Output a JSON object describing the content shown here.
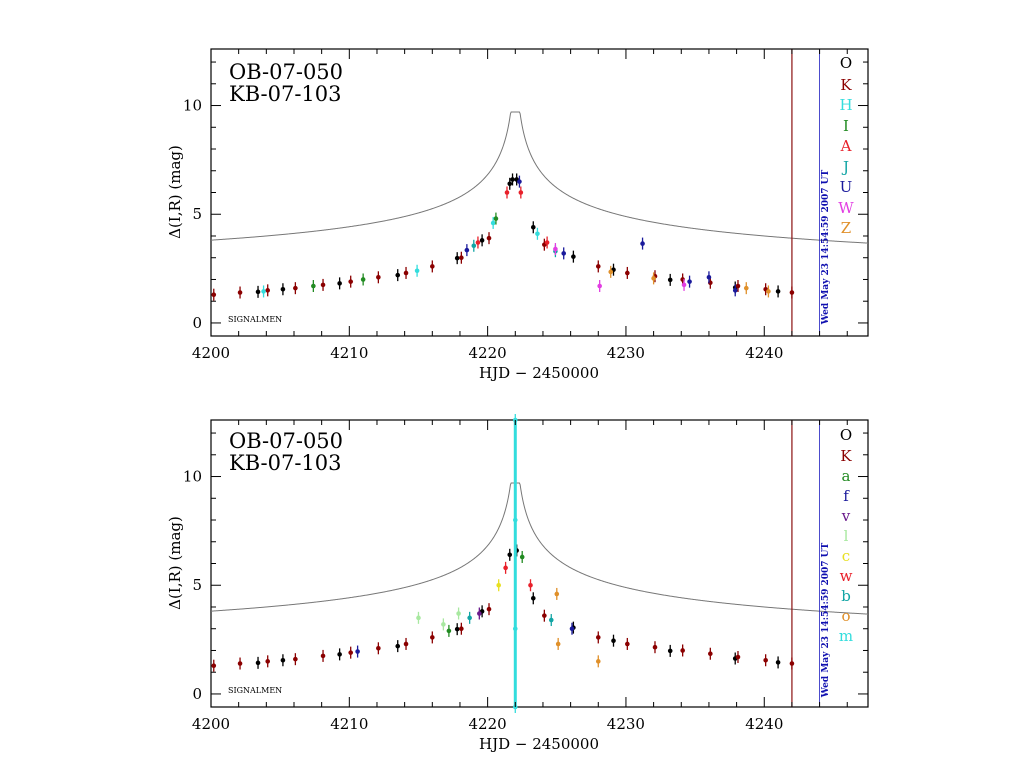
{
  "chart_data": [
    {
      "type": "scatter",
      "panel": "top",
      "event_labels": [
        "OB-07-050",
        "KB-07-103"
      ],
      "xlabel": "HJD − 2450000",
      "ylabel": "Δ(I,R) (mag)",
      "xlim": [
        4200,
        4247.5
      ],
      "ylim": [
        -0.6,
        12.6
      ],
      "xticks": [
        4200,
        4210,
        4220,
        4230,
        4240
      ],
      "xtick_labels": [
        "4200",
        "4210",
        "4220",
        "4230",
        "4240"
      ],
      "yticks": [
        0,
        5,
        10
      ],
      "ytick_labels": [
        "0",
        "5",
        "10"
      ],
      "footer_text": "SIGNALMEN",
      "timestamp": "Wed May 23 14:54:59 2007 UT",
      "current_time_marker": 4242,
      "timestamp_marker": 4244,
      "model": {
        "name": "model light curve",
        "color": "#777777",
        "t0": 4222.0,
        "peak": 9.7
      },
      "legend": [
        {
          "label": "O",
          "color": "#000000"
        },
        {
          "label": "K",
          "color": "#8b0000"
        },
        {
          "label": "H",
          "color": "#33dddd"
        },
        {
          "label": "I",
          "color": "#228b22"
        },
        {
          "label": "A",
          "color": "#e8202a"
        },
        {
          "label": "J",
          "color": "#12a5a5"
        },
        {
          "label": "U",
          "color": "#1a1a9c"
        },
        {
          "label": "W",
          "color": "#e23ee2"
        },
        {
          "label": "Z",
          "color": "#e0902a"
        }
      ],
      "series": [
        {
          "name": "O",
          "color": "#000000",
          "points": [
            [
              4203.4,
              1.43
            ],
            [
              4205.2,
              1.55
            ],
            [
              4209.3,
              1.82
            ],
            [
              4213.5,
              2.2
            ],
            [
              4217.8,
              2.98
            ],
            [
              4219.6,
              3.8
            ],
            [
              4221.6,
              6.4
            ],
            [
              4221.8,
              6.6
            ],
            [
              4222.1,
              6.6
            ],
            [
              4223.3,
              4.4
            ],
            [
              4226.2,
              3.05
            ],
            [
              4229.1,
              2.45
            ],
            [
              4233.2,
              1.98
            ],
            [
              4237.9,
              1.63
            ],
            [
              4241.0,
              1.45
            ]
          ]
        },
        {
          "name": "K",
          "color": "#8b0000",
          "points": [
            [
              4200.2,
              1.3
            ],
            [
              4202.1,
              1.4
            ],
            [
              4204.1,
              1.5
            ],
            [
              4206.1,
              1.6
            ],
            [
              4208.1,
              1.75
            ],
            [
              4210.1,
              1.9
            ],
            [
              4212.1,
              2.1
            ],
            [
              4214.1,
              2.3
            ],
            [
              4216.0,
              2.6
            ],
            [
              4218.1,
              3.0
            ],
            [
              4220.1,
              3.9
            ],
            [
              4224.1,
              3.6
            ],
            [
              4228.0,
              2.6
            ],
            [
              4230.1,
              2.3
            ],
            [
              4232.1,
              2.15
            ],
            [
              4234.1,
              2.0
            ],
            [
              4236.1,
              1.85
            ],
            [
              4238.1,
              1.7
            ],
            [
              4240.1,
              1.55
            ],
            [
              4242.0,
              1.4
            ]
          ]
        },
        {
          "name": "H",
          "color": "#33dddd",
          "points": [
            [
              4203.8,
              1.45
            ],
            [
              4214.9,
              2.4
            ],
            [
              4220.4,
              4.6
            ],
            [
              4223.6,
              4.1
            ]
          ]
        },
        {
          "name": "I",
          "color": "#228b22",
          "points": [
            [
              4207.4,
              1.7
            ],
            [
              4211.0,
              2.0
            ],
            [
              4220.6,
              4.8
            ]
          ]
        },
        {
          "name": "A",
          "color": "#e8202a",
          "points": [
            [
              4219.3,
              3.7
            ],
            [
              4221.4,
              6.0
            ],
            [
              4222.4,
              6.0
            ],
            [
              4224.3,
              3.7
            ]
          ]
        },
        {
          "name": "J",
          "color": "#12a5a5",
          "points": [
            [
              4219.0,
              3.55
            ],
            [
              4224.9,
              3.3
            ]
          ]
        },
        {
          "name": "U",
          "color": "#1a1a9c",
          "points": [
            [
              4218.5,
              3.35
            ],
            [
              4222.3,
              6.5
            ],
            [
              4225.5,
              3.2
            ],
            [
              4231.2,
              3.65
            ],
            [
              4234.6,
              1.9
            ],
            [
              4236.0,
              2.1
            ],
            [
              4237.9,
              1.5
            ]
          ]
        },
        {
          "name": "W",
          "color": "#e23ee2",
          "points": [
            [
              4224.9,
              3.4
            ],
            [
              4228.1,
              1.7
            ],
            [
              4234.2,
              1.75
            ]
          ]
        },
        {
          "name": "Z",
          "color": "#e0902a",
          "points": [
            [
              4228.9,
              2.35
            ],
            [
              4232.0,
              2.05
            ],
            [
              4238.7,
              1.6
            ],
            [
              4240.3,
              1.45
            ]
          ]
        }
      ]
    },
    {
      "type": "scatter",
      "panel": "bottom",
      "event_labels": [
        "OB-07-050",
        "KB-07-103"
      ],
      "xlabel": "HJD − 2450000",
      "ylabel": "Δ(I,R) (mag)",
      "xlim": [
        4200,
        4247.5
      ],
      "ylim": [
        -0.6,
        12.6
      ],
      "xticks": [
        4200,
        4210,
        4220,
        4230,
        4240
      ],
      "xtick_labels": [
        "4200",
        "4210",
        "4220",
        "4230",
        "4240"
      ],
      "yticks": [
        0,
        5,
        10
      ],
      "ytick_labels": [
        "0",
        "5",
        "10"
      ],
      "footer_text": "SIGNALMEN",
      "timestamp": "Wed May 23 14:54:59 2007 UT",
      "current_time_marker": 4242,
      "timestamp_marker": 4244,
      "model": {
        "name": "model light curve",
        "color": "#777777",
        "t0": 4222.0,
        "peak": 9.7
      },
      "legend": [
        {
          "label": "O",
          "color": "#000000"
        },
        {
          "label": "K",
          "color": "#8b0000"
        },
        {
          "label": "a",
          "color": "#228b22"
        },
        {
          "label": "f",
          "color": "#1a1a9c"
        },
        {
          "label": "v",
          "color": "#6a1a8c"
        },
        {
          "label": "l",
          "color": "#a8e8a0"
        },
        {
          "label": "c",
          "color": "#e8e020"
        },
        {
          "label": "w",
          "color": "#e8202a"
        },
        {
          "label": "b",
          "color": "#12a5a5"
        },
        {
          "label": "o",
          "color": "#e0902a"
        },
        {
          "label": "m",
          "color": "#33dddd"
        }
      ],
      "series": [
        {
          "name": "O",
          "color": "#000000",
          "points": [
            [
              4203.4,
              1.43
            ],
            [
              4205.2,
              1.55
            ],
            [
              4209.3,
              1.82
            ],
            [
              4213.5,
              2.2
            ],
            [
              4217.8,
              2.98
            ],
            [
              4219.6,
              3.8
            ],
            [
              4221.6,
              6.4
            ],
            [
              4222.1,
              6.6
            ],
            [
              4223.3,
              4.4
            ],
            [
              4226.2,
              3.05
            ],
            [
              4229.1,
              2.45
            ],
            [
              4233.2,
              1.98
            ],
            [
              4237.9,
              1.63
            ],
            [
              4241.0,
              1.45
            ]
          ]
        },
        {
          "name": "K",
          "color": "#8b0000",
          "points": [
            [
              4200.2,
              1.3
            ],
            [
              4202.1,
              1.4
            ],
            [
              4204.1,
              1.5
            ],
            [
              4206.1,
              1.6
            ],
            [
              4208.1,
              1.75
            ],
            [
              4210.1,
              1.9
            ],
            [
              4212.1,
              2.1
            ],
            [
              4214.1,
              2.3
            ],
            [
              4216.0,
              2.6
            ],
            [
              4218.1,
              3.0
            ],
            [
              4220.1,
              3.9
            ],
            [
              4224.1,
              3.6
            ],
            [
              4228.0,
              2.6
            ],
            [
              4230.1,
              2.3
            ],
            [
              4232.1,
              2.15
            ],
            [
              4234.1,
              2.0
            ],
            [
              4236.1,
              1.85
            ],
            [
              4238.1,
              1.7
            ],
            [
              4240.1,
              1.55
            ],
            [
              4242.0,
              1.4
            ]
          ]
        },
        {
          "name": "a",
          "color": "#228b22",
          "points": [
            [
              4222.5,
              6.3
            ],
            [
              4217.2,
              2.9
            ]
          ]
        },
        {
          "name": "f",
          "color": "#1a1a9c",
          "points": [
            [
              4210.6,
              1.95
            ],
            [
              4226.1,
              3.0
            ]
          ]
        },
        {
          "name": "v",
          "color": "#6a1a8c",
          "points": [
            [
              4219.4,
              3.7
            ]
          ]
        },
        {
          "name": "l",
          "color": "#a8e8a0",
          "points": [
            [
              4215.0,
              3.5
            ],
            [
              4216.8,
              3.2
            ],
            [
              4217.9,
              3.7
            ]
          ]
        },
        {
          "name": "c",
          "color": "#e8e020",
          "points": [
            [
              4220.8,
              5.0
            ]
          ]
        },
        {
          "name": "w",
          "color": "#e8202a",
          "points": [
            [
              4221.3,
              5.8
            ],
            [
              4223.1,
              5.0
            ]
          ]
        },
        {
          "name": "b",
          "color": "#12a5a5",
          "points": [
            [
              4218.7,
              3.5
            ],
            [
              4224.6,
              3.4
            ]
          ]
        },
        {
          "name": "o",
          "color": "#e0902a",
          "points": [
            [
              4225.1,
              2.3
            ],
            [
              4228.0,
              1.5
            ],
            [
              4225.0,
              4.6
            ]
          ]
        },
        {
          "name": "m",
          "color": "#33dddd",
          "points": [
            [
              4222.0,
              12.6
            ],
            [
              4222.0,
              8.0
            ],
            [
              4222.0,
              3.0
            ],
            [
              4222.0,
              -0.6
            ]
          ]
        }
      ]
    }
  ]
}
